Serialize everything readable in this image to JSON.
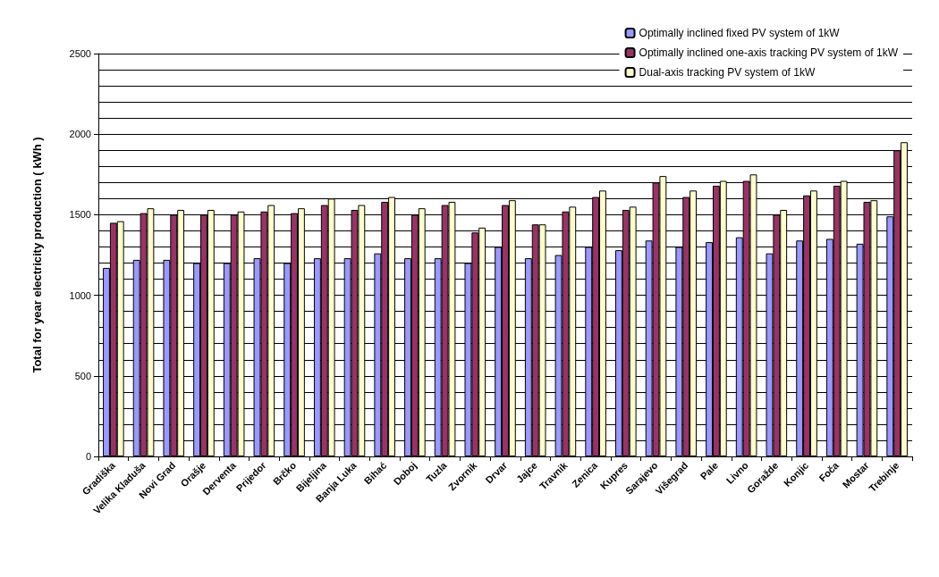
{
  "chart_data": {
    "type": "bar",
    "ylabel": "Total for year electricity production ( kWh )",
    "categories": [
      "Gradiška",
      "Velika Kladuša",
      "Novi Grad",
      "Orašje",
      "Derventa",
      "Prijedor",
      "Brčko",
      "Bijeljina",
      "Banja Luka",
      "Bihać",
      "Doboj",
      "Tuzla",
      "Zvornik",
      "Drvar",
      "Jajce",
      "Travnik",
      "Zenica",
      "Kupres",
      "Sarajevo",
      "Višegrad",
      "Pale",
      "Livno",
      "Goražde",
      "Konjic",
      "Foča",
      "Mostar",
      "Trebinje"
    ],
    "series": [
      {
        "name": "Optimally inclined fixed PV system of 1kW",
        "color": "#9999ff",
        "values": [
          1170,
          1220,
          1220,
          1200,
          1200,
          1230,
          1200,
          1230,
          1230,
          1260,
          1230,
          1230,
          1200,
          1300,
          1230,
          1250,
          1300,
          1280,
          1340,
          1300,
          1330,
          1360,
          1260,
          1340,
          1350,
          1320,
          1490
        ]
      },
      {
        "name": "Optimally inclined one-axis tracking PV system of 1kW",
        "color": "#993366",
        "values": [
          1450,
          1510,
          1500,
          1500,
          1500,
          1520,
          1510,
          1560,
          1530,
          1580,
          1500,
          1560,
          1390,
          1560,
          1440,
          1520,
          1610,
          1530,
          1700,
          1610,
          1680,
          1710,
          1500,
          1620,
          1680,
          1580,
          1900
        ]
      },
      {
        "name": "Dual-axis tracking PV system of 1kW",
        "color": "#ffffcc",
        "values": [
          1460,
          1540,
          1530,
          1530,
          1520,
          1560,
          1540,
          1600,
          1560,
          1610,
          1540,
          1580,
          1420,
          1590,
          1440,
          1550,
          1650,
          1550,
          1740,
          1650,
          1710,
          1750,
          1530,
          1650,
          1710,
          1590,
          1950
        ]
      }
    ],
    "ylim": [
      0,
      2500
    ],
    "yticks": [
      0,
      500,
      1000,
      1500,
      2000,
      2500
    ],
    "grid": "y",
    "legend": "top right"
  }
}
